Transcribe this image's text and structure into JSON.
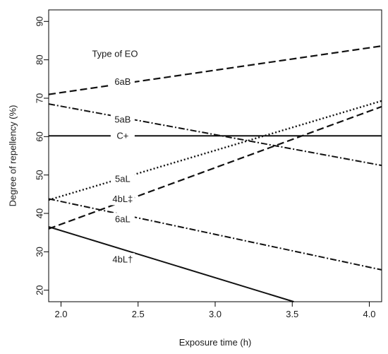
{
  "chart_data": {
    "type": "line",
    "title": "",
    "xlabel": "Exposure time (h)",
    "ylabel": "Degree of repellency (%)",
    "xlim": [
      1.92,
      4.08
    ],
    "ylim": [
      17,
      93
    ],
    "xticks": [
      2.0,
      2.5,
      3.0,
      3.5,
      4.0
    ],
    "xtick_labels": [
      "2.0",
      "2.5",
      "3.0",
      "3.5",
      "4.0"
    ],
    "yticks": [
      20,
      30,
      40,
      50,
      60,
      70,
      80,
      90
    ],
    "ytick_labels": [
      "20",
      "30",
      "40",
      "50",
      "60",
      "70",
      "80",
      "90"
    ],
    "grid": false,
    "legend_title": "Type of EO",
    "series": [
      {
        "name": "6aB",
        "style": "long-dash",
        "x": [
          1.92,
          4.08
        ],
        "y": [
          71.0,
          83.6
        ],
        "label_at": [
          2.4,
          74.3
        ]
      },
      {
        "name": "5aB",
        "style": "dash-dot",
        "x": [
          1.92,
          4.08
        ],
        "y": [
          68.5,
          52.5
        ],
        "label_at": [
          2.4,
          64.5
        ]
      },
      {
        "name": "C+",
        "style": "solid",
        "x": [
          1.92,
          4.08
        ],
        "y": [
          60.2,
          60.2
        ],
        "label_at": [
          2.4,
          60.2
        ]
      },
      {
        "name": "5aL",
        "style": "dotted",
        "x": [
          1.92,
          4.08
        ],
        "y": [
          43.5,
          69.3
        ],
        "label_at": [
          2.4,
          49.0
        ]
      },
      {
        "name": "4bL‡",
        "style": "long-dash",
        "x": [
          1.92,
          4.08
        ],
        "y": [
          36.0,
          67.8
        ],
        "label_at": [
          2.4,
          43.8
        ]
      },
      {
        "name": "6aL",
        "style": "dash-dot",
        "x": [
          1.92,
          4.08
        ],
        "y": [
          43.8,
          25.3
        ],
        "label_at": [
          2.4,
          38.5
        ]
      },
      {
        "name": "4bL†",
        "style": "solid",
        "x": [
          1.92,
          3.51
        ],
        "y": [
          36.5,
          17.0
        ],
        "label_at": [
          2.4,
          28.0
        ]
      }
    ]
  }
}
